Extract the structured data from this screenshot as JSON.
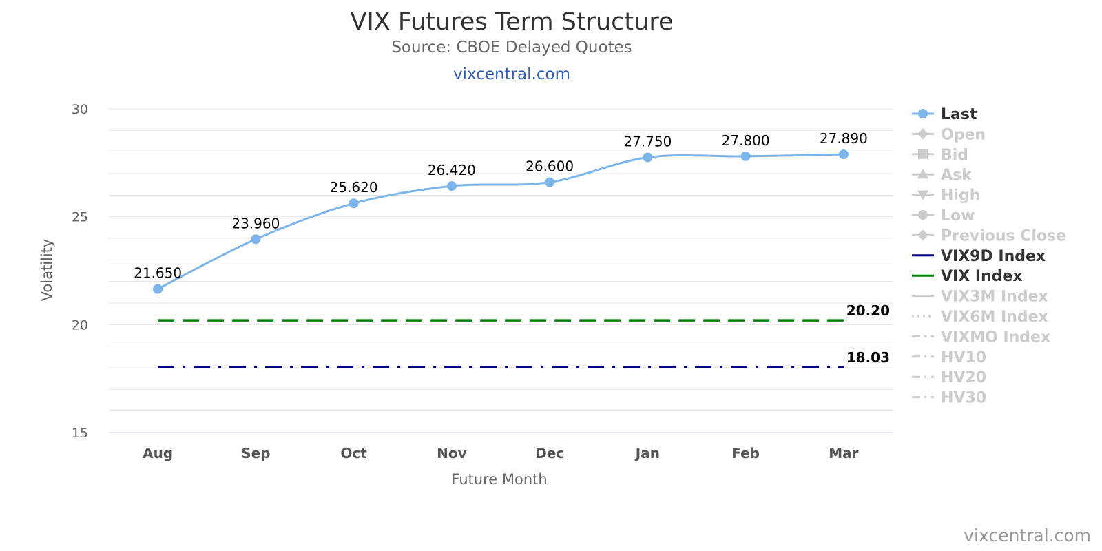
{
  "header": {
    "title": "VIX Futures Term Structure",
    "subtitle": "Source: CBOE Delayed Quotes",
    "link": "vixcentral.com"
  },
  "credit": "vixcentral.com",
  "chart_data": {
    "type": "line",
    "title": "VIX Futures Term Structure",
    "subtitle": "Source: CBOE Delayed Quotes",
    "xlabel": "Future Month",
    "ylabel": "Volatility",
    "categories": [
      "Aug",
      "Sep",
      "Oct",
      "Nov",
      "Dec",
      "Jan",
      "Feb",
      "Mar"
    ],
    "ylim": [
      15,
      30
    ],
    "yticks": [
      15,
      20,
      25,
      30
    ],
    "grid": true,
    "legend_position": "right",
    "series": [
      {
        "name": "Last",
        "values": [
          21.65,
          23.96,
          25.62,
          26.42,
          26.6,
          27.75,
          27.8,
          27.89
        ],
        "labels": [
          "21.650",
          "23.960",
          "25.620",
          "26.420",
          "26.600",
          "27.750",
          "27.800",
          "27.890"
        ],
        "color": "#7cb5ec",
        "style": "solid",
        "marker": "circle",
        "visible": true
      },
      {
        "name": "VIX9D Index",
        "value": 18.03,
        "end_label": "18.03",
        "color": "#000080",
        "style": "dashdot",
        "visible": true
      },
      {
        "name": "VIX Index",
        "value": 20.2,
        "end_label": "20.20",
        "color": "#008000",
        "style": "dash",
        "visible": true
      }
    ],
    "legend": [
      {
        "name": "Last",
        "symbol": "circle",
        "active": true,
        "color": "#7cb5ec"
      },
      {
        "name": "Open",
        "symbol": "diamond",
        "active": false,
        "color": "#cccccc"
      },
      {
        "name": "Bid",
        "symbol": "square",
        "active": false,
        "color": "#cccccc"
      },
      {
        "name": "Ask",
        "symbol": "triangle",
        "active": false,
        "color": "#cccccc"
      },
      {
        "name": "High",
        "symbol": "triangle-down",
        "active": false,
        "color": "#cccccc"
      },
      {
        "name": "Low",
        "symbol": "circle",
        "active": false,
        "color": "#cccccc"
      },
      {
        "name": "Previous Close",
        "symbol": "diamond",
        "active": false,
        "color": "#cccccc"
      },
      {
        "name": "VIX9D Index",
        "symbol": "line-solid",
        "active": true,
        "color": "#000080"
      },
      {
        "name": "VIX Index",
        "symbol": "line-solid",
        "active": true,
        "color": "#008000"
      },
      {
        "name": "VIX3M Index",
        "symbol": "line-solid",
        "active": false,
        "color": "#cccccc"
      },
      {
        "name": "VIX6M Index",
        "symbol": "line-dot",
        "active": false,
        "color": "#cccccc"
      },
      {
        "name": "VIXMO Index",
        "symbol": "line-dashdot",
        "active": false,
        "color": "#cccccc"
      },
      {
        "name": "HV10",
        "symbol": "line-dashdot",
        "active": false,
        "color": "#cccccc"
      },
      {
        "name": "HV20",
        "symbol": "line-dashdot",
        "active": false,
        "color": "#cccccc"
      },
      {
        "name": "HV30",
        "symbol": "line-dashdot",
        "active": false,
        "color": "#cccccc"
      }
    ]
  }
}
